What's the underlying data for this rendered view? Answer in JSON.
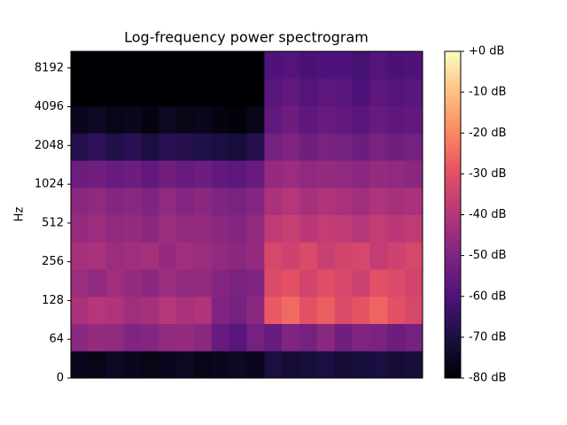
{
  "chart_data": {
    "type": "heatmap",
    "title": "Log-frequency power spectrogram",
    "y_label": "Hz",
    "yscale": "symlog",
    "linthresh": 64,
    "ylim": [
      0,
      11025
    ],
    "yticks": [
      0,
      64,
      128,
      256,
      512,
      1024,
      2048,
      4096,
      8192
    ],
    "colormap": "magma",
    "zlim": [
      -80,
      0
    ],
    "colorbar_ticks": [
      {
        "value": 0,
        "label": "+0 dB"
      },
      {
        "value": -10,
        "label": "-10 dB"
      },
      {
        "value": -20,
        "label": "-20 dB"
      },
      {
        "value": -30,
        "label": "-30 dB"
      },
      {
        "value": -40,
        "label": "-40 dB"
      },
      {
        "value": -50,
        "label": "-50 dB"
      },
      {
        "value": -60,
        "label": "-60 dB"
      },
      {
        "value": -70,
        "label": "-70 dB"
      },
      {
        "value": -80,
        "label": "-80 dB"
      }
    ],
    "z": [
      [
        -76,
        -77,
        -75,
        -76,
        -77,
        -76,
        -75,
        -77,
        -76,
        -75,
        -76,
        -70,
        -72,
        -71,
        -70,
        -72,
        -71,
        -70,
        -72,
        -71
      ],
      [
        -48,
        -46,
        -47,
        -50,
        -49,
        -47,
        -46,
        -48,
        -55,
        -58,
        -52,
        -55,
        -50,
        -52,
        -48,
        -53,
        -50,
        -51,
        -54,
        -52
      ],
      [
        -42,
        -40,
        -41,
        -44,
        -43,
        -40,
        -42,
        -41,
        -50,
        -52,
        -48,
        -28,
        -25,
        -30,
        -27,
        -32,
        -29,
        -26,
        -30,
        -33
      ],
      [
        -45,
        -47,
        -44,
        -46,
        -48,
        -45,
        -47,
        -46,
        -49,
        -51,
        -50,
        -32,
        -30,
        -34,
        -31,
        -33,
        -35,
        -30,
        -32,
        -34
      ],
      [
        -43,
        -42,
        -45,
        -44,
        -43,
        -46,
        -44,
        -45,
        -47,
        -48,
        -46,
        -33,
        -35,
        -32,
        -36,
        -34,
        -33,
        -37,
        -35,
        -33
      ],
      [
        -46,
        -45,
        -47,
        -46,
        -48,
        -45,
        -47,
        -46,
        -48,
        -49,
        -47,
        -38,
        -36,
        -39,
        -37,
        -38,
        -40,
        -37,
        -39,
        -38
      ],
      [
        -48,
        -47,
        -49,
        -48,
        -50,
        -47,
        -49,
        -48,
        -50,
        -51,
        -49,
        -42,
        -40,
        -43,
        -41,
        -42,
        -44,
        -41,
        -43,
        -42
      ],
      [
        -54,
        -53,
        -55,
        -54,
        -56,
        -53,
        -55,
        -54,
        -56,
        -57,
        -55,
        -46,
        -45,
        -47,
        -46,
        -47,
        -48,
        -46,
        -47,
        -48
      ],
      [
        -68,
        -66,
        -69,
        -67,
        -70,
        -67,
        -68,
        -69,
        -70,
        -71,
        -68,
        -52,
        -50,
        -53,
        -51,
        -52,
        -54,
        -51,
        -53,
        -52
      ],
      [
        -76,
        -75,
        -77,
        -76,
        -78,
        -75,
        -77,
        -76,
        -78,
        -79,
        -77,
        -56,
        -54,
        -57,
        -55,
        -56,
        -58,
        -55,
        -57,
        -56
      ],
      [
        -80,
        -80,
        -80,
        -80,
        -80,
        -80,
        -80,
        -80,
        -80,
        -80,
        -80,
        -58,
        -56,
        -59,
        -57,
        -58,
        -60,
        -57,
        -59,
        -58
      ],
      [
        -80,
        -80,
        -80,
        -80,
        -80,
        -80,
        -80,
        -80,
        -80,
        -80,
        -80,
        -60,
        -59,
        -61,
        -60,
        -60,
        -62,
        -59,
        -61,
        -60
      ]
    ]
  }
}
